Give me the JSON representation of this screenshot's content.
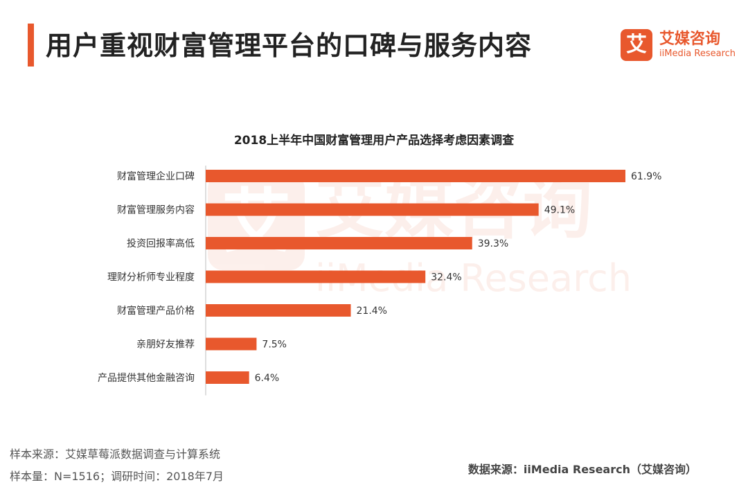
{
  "header": {
    "title": "用户重视财富管理平台的口碑与服务内容",
    "logo_mark": "艾",
    "logo_cn": "艾媒咨询",
    "logo_en": "iiMedia Research"
  },
  "watermark": {
    "mark": "艾",
    "cn": "艾媒咨询",
    "en": "iiMedia Research"
  },
  "chart_data": {
    "type": "bar",
    "orientation": "horizontal",
    "title": "2018上半年中国财富管理用户产品选择考虑因素调查",
    "categories": [
      "财富管理企业口碑",
      "财富管理服务内容",
      "投资回报率高低",
      "理财分析师专业程度",
      "财富管理产品价格",
      "亲朋好友推荐",
      "产品提供其他金融咨询"
    ],
    "values": [
      61.9,
      49.1,
      39.3,
      32.4,
      21.4,
      7.5,
      6.4
    ],
    "value_labels": [
      "61.9%",
      "49.1%",
      "39.3%",
      "32.4%",
      "21.4%",
      "7.5%",
      "6.4%"
    ],
    "xlim": [
      0,
      61.9
    ],
    "color": "#e8582d",
    "grid": false
  },
  "footer": {
    "source_left": "样本来源：艾媒草莓派数据调查与计算系统",
    "sample": "样本量：N=1516；调研时间：2018年7月",
    "source_right": "数据来源：iiMedia Research（艾媒咨询）"
  },
  "colors": {
    "accent": "#e8582d",
    "axis": "#bbbbbb"
  }
}
